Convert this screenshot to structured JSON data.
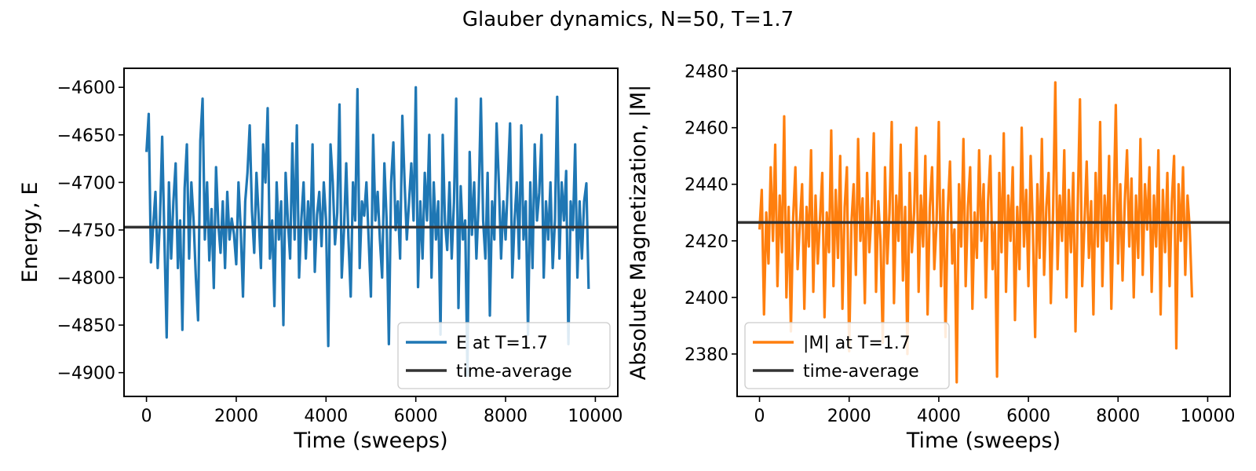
{
  "figure": {
    "title": "Glauber dynamics, N=50, T=1.7"
  },
  "chart_data": [
    {
      "type": "line",
      "title": "",
      "xlabel": "Time (sweeps)",
      "ylabel": "Energy, E",
      "xlim": [
        -500,
        10500
      ],
      "ylim": [
        -4925,
        -4580
      ],
      "xticks": [
        0,
        2000,
        4000,
        6000,
        8000,
        10000
      ],
      "xtick_labels": [
        "0",
        "2000",
        "4000",
        "6000",
        "8000",
        "10000"
      ],
      "yticks": [
        -4900,
        -4850,
        -4800,
        -4750,
        -4700,
        -4650,
        -4600
      ],
      "ytick_labels": [
        "−4900",
        "−4850",
        "−4800",
        "−4750",
        "−4700",
        "−4650",
        "−4600"
      ],
      "grid": false,
      "legend_position": "lower-right",
      "series": [
        {
          "name": "E at T=1.7",
          "color": "#1f77b4",
          "x_start": 0,
          "x_step": 50,
          "values": [
            -4668,
            -4628,
            -4784,
            -4745,
            -4710,
            -4790,
            -4740,
            -4652,
            -4760,
            -4863,
            -4700,
            -4780,
            -4720,
            -4680,
            -4790,
            -4740,
            -4855,
            -4706,
            -4660,
            -4780,
            -4700,
            -4740,
            -4800,
            -4845,
            -4656,
            -4612,
            -4760,
            -4700,
            -4782,
            -4728,
            -4811,
            -4684,
            -4743,
            -4774,
            -4720,
            -4790,
            -4710,
            -4760,
            -4738,
            -4755,
            -4786,
            -4700,
            -4750,
            -4820,
            -4720,
            -4690,
            -4640,
            -4730,
            -4774,
            -4690,
            -4736,
            -4790,
            -4660,
            -4700,
            -4622,
            -4780,
            -4740,
            -4830,
            -4700,
            -4760,
            -4720,
            -4850,
            -4690,
            -4740,
            -4780,
            -4659,
            -4760,
            -4640,
            -4800,
            -4739,
            -4700,
            -4780,
            -4720,
            -4760,
            -4660,
            -4794,
            -4734,
            -4710,
            -4767,
            -4700,
            -4740,
            -4872,
            -4660,
            -4700,
            -4765,
            -4732,
            -4618,
            -4800,
            -4750,
            -4680,
            -4760,
            -4820,
            -4700,
            -4740,
            -4602,
            -4790,
            -4720,
            -4735,
            -4700,
            -4760,
            -4820,
            -4650,
            -4740,
            -4710,
            -4760,
            -4800,
            -4680,
            -4740,
            -4870,
            -4700,
            -4658,
            -4750,
            -4720,
            -4780,
            -4630,
            -4700,
            -4760,
            -4720,
            -4680,
            -4740,
            -4600,
            -4810,
            -4720,
            -4780,
            -4690,
            -4740,
            -4650,
            -4800,
            -4700,
            -4760,
            -4720,
            -4860,
            -4650,
            -4742,
            -4771,
            -4700,
            -4780,
            -4721,
            -4612,
            -4832,
            -4704,
            -4760,
            -4740,
            -4903,
            -4668,
            -4755,
            -4700,
            -4780,
            -4720,
            -4612,
            -4740,
            -4780,
            -4690,
            -4840,
            -4720,
            -4760,
            -4638,
            -4700,
            -4780,
            -4720,
            -4760,
            -4700,
            -4638,
            -4800,
            -4740,
            -4700,
            -4780,
            -4640,
            -4760,
            -4720,
            -4860,
            -4700,
            -4790,
            -4660,
            -4740,
            -4711,
            -4650,
            -4800,
            -4720,
            -4760,
            -4700,
            -4790,
            -4740,
            -4610,
            -4780,
            -4700,
            -4740,
            -4688,
            -4870,
            -4720,
            -4750,
            -4660,
            -4800,
            -4720,
            -4780,
            -4720,
            -4701,
            -4812
          ]
        }
      ],
      "reference_line": {
        "name": "time-average",
        "value": -4747,
        "color": "#333333"
      }
    },
    {
      "type": "line",
      "title": "",
      "xlabel": "Time (sweeps)",
      "ylabel": "Absolute Magnetization, |M|",
      "xlim": [
        -500,
        10500
      ],
      "ylim": [
        2365,
        2481
      ],
      "xticks": [
        0,
        2000,
        4000,
        6000,
        8000,
        10000
      ],
      "xtick_labels": [
        "0",
        "2000",
        "4000",
        "6000",
        "8000",
        "10000"
      ],
      "yticks": [
        2380,
        2400,
        2420,
        2440,
        2460,
        2480
      ],
      "ytick_labels": [
        "2380",
        "2400",
        "2420",
        "2440",
        "2460",
        "2480"
      ],
      "grid": false,
      "legend_position": "lower-left",
      "series": [
        {
          "name": "|M| at T=1.7",
          "color": "#ff7f0e",
          "x_start": 0,
          "x_step": 50,
          "values": [
            2424,
            2438,
            2394,
            2430,
            2412,
            2446,
            2420,
            2454,
            2404,
            2436,
            2416,
            2464,
            2400,
            2432,
            2388,
            2428,
            2446,
            2410,
            2426,
            2440,
            2396,
            2432,
            2418,
            2452,
            2402,
            2436,
            2412,
            2428,
            2444,
            2393,
            2430,
            2416,
            2459,
            2404,
            2438,
            2414,
            2450,
            2396,
            2432,
            2446,
            2381,
            2426,
            2440,
            2408,
            2456,
            2420,
            2435,
            2398,
            2444,
            2416,
            2430,
            2458,
            2402,
            2434,
            2420,
            2384,
            2446,
            2412,
            2430,
            2462,
            2398,
            2436,
            2420,
            2454,
            2406,
            2432,
            2380,
            2444,
            2416,
            2430,
            2460,
            2402,
            2436,
            2418,
            2450,
            2394,
            2432,
            2446,
            2410,
            2426,
            2462,
            2404,
            2438,
            2386,
            2430,
            2448,
            2412,
            2424,
            2370,
            2440,
            2418,
            2456,
            2404,
            2432,
            2446,
            2396,
            2430,
            2414,
            2452,
            2420,
            2440,
            2400,
            2434,
            2450,
            2410,
            2426,
            2372,
            2444,
            2416,
            2458,
            2402,
            2436,
            2420,
            2446,
            2392,
            2432,
            2410,
            2460,
            2418,
            2438,
            2404,
            2450,
            2424,
            2386,
            2440,
            2414,
            2456,
            2408,
            2432,
            2444,
            2398,
            2430,
            2476,
            2410,
            2436,
            2420,
            2452,
            2400,
            2438,
            2416,
            2444,
            2388,
            2432,
            2470,
            2404,
            2426,
            2448,
            2414,
            2434,
            2394,
            2444,
            2418,
            2462,
            2404,
            2436,
            2420,
            2450,
            2396,
            2430,
            2468,
            2412,
            2440,
            2406,
            2434,
            2452,
            2418,
            2442,
            2400,
            2436,
            2414,
            2456,
            2408,
            2440,
            2424,
            2446,
            2402,
            2436,
            2418,
            2452,
            2394,
            2438,
            2416,
            2444,
            2404,
            2434,
            2450,
            2382,
            2440,
            2420,
            2446,
            2408,
            2436,
            2424,
            2400
          ]
        }
      ],
      "reference_line": {
        "name": "time-average",
        "value": 2426.5,
        "color": "#333333"
      }
    }
  ]
}
